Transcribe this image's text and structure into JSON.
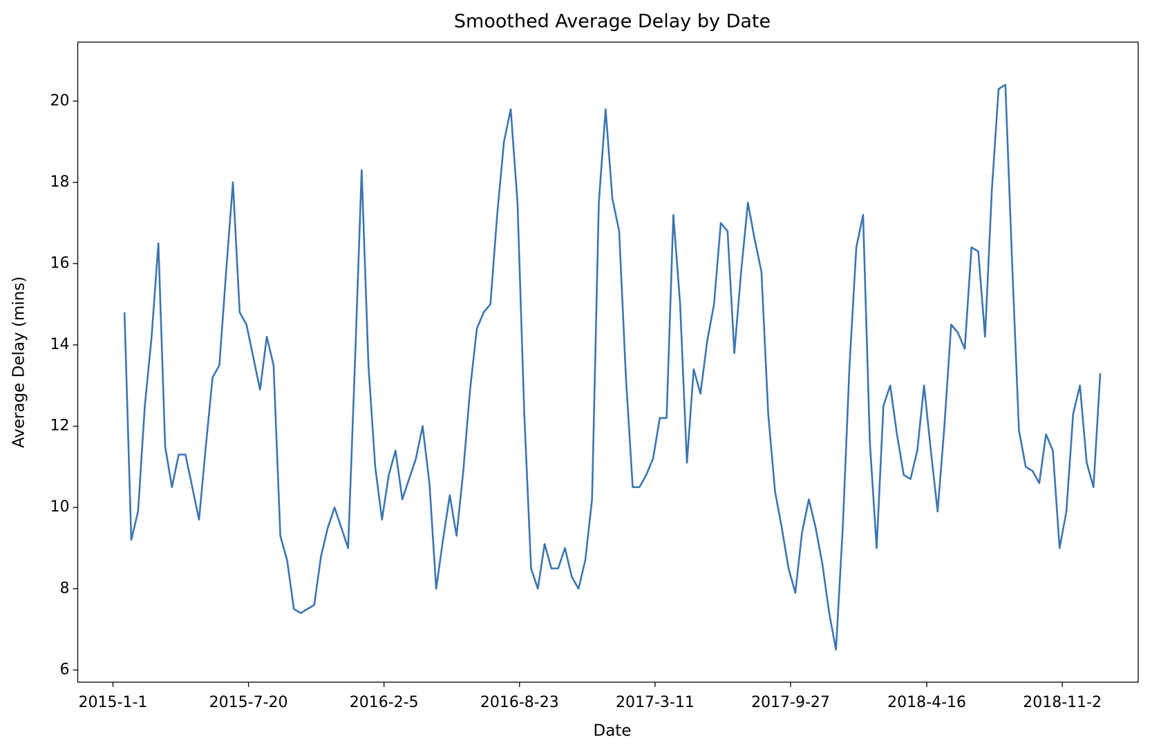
{
  "chart_data": {
    "type": "line",
    "title": "Smoothed Average Delay by Date",
    "x_label": "Date",
    "y_label": "Average Delay (mins)",
    "color": "#3b75af",
    "grid": false,
    "xlim": [
      "2014-11-10",
      "2019-2-22"
    ],
    "xticks": [
      "2015-1-1",
      "2015-7-20",
      "2016-2-5",
      "2016-8-23",
      "2017-3-11",
      "2017-9-27",
      "2018-4-16",
      "2018-11-2"
    ],
    "ylim": [
      5.7,
      21.45
    ],
    "yticks": [
      6,
      8,
      10,
      12,
      14,
      16,
      18,
      20
    ],
    "x": [
      "2015-1-18",
      "2015-1-28",
      "2015-2-7",
      "2015-2-17",
      "2015-2-27",
      "2015-3-9",
      "2015-3-19",
      "2015-3-29",
      "2015-4-8",
      "2015-4-18",
      "2015-4-28",
      "2015-5-8",
      "2015-5-18",
      "2015-5-28",
      "2015-6-7",
      "2015-6-17",
      "2015-6-27",
      "2015-7-7",
      "2015-7-17",
      "2015-7-27",
      "2015-8-6",
      "2015-8-16",
      "2015-8-26",
      "2015-9-5",
      "2015-9-15",
      "2015-9-25",
      "2015-10-5",
      "2015-10-15",
      "2015-10-25",
      "2015-11-4",
      "2015-11-14",
      "2015-11-24",
      "2015-12-4",
      "2015-12-14",
      "2015-12-24",
      "2016-1-3",
      "2016-1-13",
      "2016-1-23",
      "2016-2-2",
      "2016-2-12",
      "2016-2-22",
      "2016-3-3",
      "2016-3-13",
      "2016-3-23",
      "2016-4-2",
      "2016-4-12",
      "2016-4-22",
      "2016-5-2",
      "2016-5-12",
      "2016-5-22",
      "2016-6-1",
      "2016-6-11",
      "2016-6-21",
      "2016-7-1",
      "2016-7-11",
      "2016-7-21",
      "2016-7-31",
      "2016-8-10",
      "2016-8-20",
      "2016-8-30",
      "2016-9-9",
      "2016-9-19",
      "2016-9-29",
      "2016-10-9",
      "2016-10-19",
      "2016-10-29",
      "2016-11-8",
      "2016-11-18",
      "2016-11-28",
      "2016-12-8",
      "2016-12-18",
      "2016-12-28",
      "2017-1-7",
      "2017-1-17",
      "2017-1-27",
      "2017-2-6",
      "2017-2-16",
      "2017-2-26",
      "2017-3-8",
      "2017-3-18",
      "2017-3-28",
      "2017-4-7",
      "2017-4-17",
      "2017-4-27",
      "2017-5-7",
      "2017-5-17",
      "2017-5-27",
      "2017-6-6",
      "2017-6-16",
      "2017-6-26",
      "2017-7-6",
      "2017-7-16",
      "2017-7-26",
      "2017-8-5",
      "2017-8-15",
      "2017-8-25",
      "2017-9-4",
      "2017-9-14",
      "2017-9-24",
      "2017-10-4",
      "2017-10-14",
      "2017-10-24",
      "2017-11-3",
      "2017-11-13",
      "2017-11-23",
      "2017-12-3",
      "2017-12-13",
      "2017-12-23",
      "2018-1-2",
      "2018-1-12",
      "2018-1-22",
      "2018-2-1",
      "2018-2-11",
      "2018-2-21",
      "2018-3-3",
      "2018-3-13",
      "2018-3-23",
      "2018-4-2",
      "2018-4-12",
      "2018-4-22",
      "2018-5-2",
      "2018-5-12",
      "2018-5-22",
      "2018-6-1",
      "2018-6-11",
      "2018-6-21",
      "2018-7-1",
      "2018-7-11",
      "2018-7-21",
      "2018-7-31",
      "2018-8-10",
      "2018-8-20",
      "2018-8-30",
      "2018-9-9",
      "2018-9-19",
      "2018-9-29",
      "2018-10-9",
      "2018-10-19",
      "2018-10-29",
      "2018-11-8",
      "2018-11-18",
      "2018-11-28",
      "2018-12-8",
      "2018-12-18",
      "2018-12-28"
    ],
    "values": [
      14.8,
      9.2,
      9.9,
      12.5,
      14.2,
      16.5,
      11.5,
      10.5,
      11.3,
      11.3,
      10.5,
      9.7,
      11.5,
      13.2,
      13.5,
      15.8,
      18.0,
      14.8,
      14.5,
      13.7,
      12.9,
      14.2,
      13.5,
      9.3,
      8.7,
      7.5,
      7.4,
      7.5,
      7.6,
      8.8,
      9.5,
      10.0,
      9.5,
      9.0,
      13.5,
      18.3,
      13.5,
      11.0,
      9.7,
      10.8,
      11.4,
      10.2,
      10.7,
      11.2,
      12.0,
      10.6,
      8.0,
      9.2,
      10.3,
      9.3,
      10.9,
      12.9,
      14.4,
      14.8,
      15.0,
      17.2,
      19.0,
      19.8,
      17.5,
      12.3,
      8.5,
      8.0,
      9.1,
      8.5,
      8.5,
      9.0,
      8.3,
      8.0,
      8.7,
      10.2,
      17.5,
      19.8,
      17.6,
      16.8,
      13.2,
      10.5,
      10.5,
      10.8,
      11.2,
      12.2,
      12.2,
      17.2,
      15.0,
      11.1,
      13.4,
      12.8,
      14.1,
      15.0,
      17.0,
      16.8,
      13.8,
      15.8,
      17.5,
      16.6,
      15.8,
      12.3,
      10.4,
      9.5,
      8.5,
      7.9,
      9.4,
      10.2,
      9.5,
      8.6,
      7.4,
      6.5,
      9.5,
      13.5,
      16.4,
      17.2,
      11.6,
      9.0,
      12.5,
      13.0,
      11.8,
      10.8,
      10.7,
      11.4,
      13.0,
      11.4,
      9.9,
      12.0,
      14.5,
      14.3,
      13.9,
      16.4,
      16.3,
      14.2,
      17.8,
      20.3,
      20.4,
      16.0,
      11.9,
      11.0,
      10.9,
      10.6,
      11.8,
      11.4,
      9.0,
      9.9,
      12.3,
      13.0,
      11.1,
      10.5,
      13.3
    ]
  }
}
